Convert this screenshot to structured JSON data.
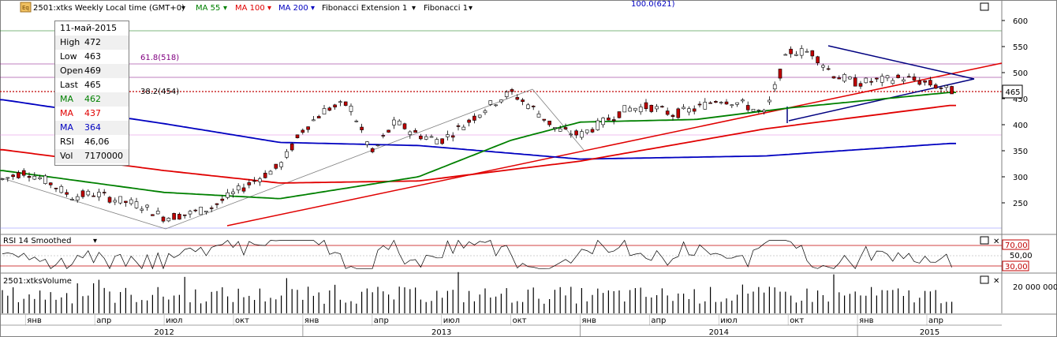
{
  "header": {
    "symbol_label": "2501:xtks Weekly Local time (GMT+0)",
    "ma55_label": "MA 55",
    "ma100_label": "MA 100",
    "ma200_label": "MA 200",
    "fib_ext_label": "Fibonacci Extension 1",
    "fib_label": "Fibonacci 1"
  },
  "info_box": {
    "date": "11-май-2015",
    "rows": [
      {
        "key": "High",
        "value": "472",
        "color": "#000000"
      },
      {
        "key": "Low",
        "value": "463",
        "color": "#000000"
      },
      {
        "key": "Open",
        "value": "469",
        "color": "#000000"
      },
      {
        "key": "Last",
        "value": "465",
        "color": "#000000"
      },
      {
        "key": "MA",
        "value": "462",
        "color": "#008000"
      },
      {
        "key": "MA",
        "value": "437",
        "color": "#e00000"
      },
      {
        "key": "MA",
        "value": "364",
        "color": "#0000c0"
      },
      {
        "key": "RSI",
        "value": "46,06",
        "color": "#000000"
      },
      {
        "key": "Vol",
        "value": "7170000",
        "color": "#000000"
      }
    ]
  },
  "fib_labels": {
    "ext": "100.0(621)",
    "f618": "61.8(518)",
    "f382": "38.2(454)"
  },
  "last_price_label": "465",
  "rsi_panel": {
    "title": "RSI 14 Smoothed",
    "levels": [
      "70,00",
      "50,00",
      "30,00"
    ]
  },
  "volume_panel": {
    "title": "2501:xtksVolume",
    "scale_label": "20 000 000"
  },
  "x_axis": {
    "months": [
      "янв",
      "апр",
      "июл",
      "окт",
      "янв",
      "апр",
      "июл",
      "окт",
      "янв",
      "апр",
      "июл",
      "окт",
      "янв",
      "апр"
    ],
    "years": [
      "2012",
      "2013",
      "2014",
      "2015"
    ]
  },
  "colors": {
    "ma55": "#008000",
    "ma100": "#e00000",
    "ma200": "#0000c0",
    "fib": "#800080",
    "up": "#ffffff",
    "down": "#c00000"
  },
  "chart_data": {
    "type": "candlestick",
    "title": "2501:xtks Weekly",
    "y_ticks": [
      250,
      300,
      350,
      400,
      450,
      500,
      550,
      600
    ],
    "ylim": [
      200,
      630
    ],
    "period": "2011-12 to 2015-05 (weekly)",
    "close_anchor_points": [
      {
        "date": "2011-12",
        "close": 295
      },
      {
        "date": "2012-01",
        "close": 310
      },
      {
        "date": "2012-02",
        "close": 290
      },
      {
        "date": "2012-03",
        "close": 262
      },
      {
        "date": "2012-04",
        "close": 268
      },
      {
        "date": "2012-05",
        "close": 255
      },
      {
        "date": "2012-06",
        "close": 245
      },
      {
        "date": "2012-07",
        "close": 222
      },
      {
        "date": "2012-08",
        "close": 228
      },
      {
        "date": "2012-09",
        "close": 240
      },
      {
        "date": "2012-10",
        "close": 268
      },
      {
        "date": "2012-11",
        "close": 295
      },
      {
        "date": "2012-12",
        "close": 320
      },
      {
        "date": "2013-01",
        "close": 390
      },
      {
        "date": "2013-02",
        "close": 430
      },
      {
        "date": "2013-03",
        "close": 440
      },
      {
        "date": "2013-04",
        "close": 345
      },
      {
        "date": "2013-05",
        "close": 405
      },
      {
        "date": "2013-06",
        "close": 380
      },
      {
        "date": "2013-07",
        "close": 370
      },
      {
        "date": "2013-08",
        "close": 400
      },
      {
        "date": "2013-09",
        "close": 435
      },
      {
        "date": "2013-10",
        "close": 462
      },
      {
        "date": "2013-11",
        "close": 430
      },
      {
        "date": "2013-12",
        "close": 390
      },
      {
        "date": "2014-01",
        "close": 380
      },
      {
        "date": "2014-02",
        "close": 405
      },
      {
        "date": "2014-03",
        "close": 430
      },
      {
        "date": "2014-04",
        "close": 435
      },
      {
        "date": "2014-05",
        "close": 420
      },
      {
        "date": "2014-06",
        "close": 430
      },
      {
        "date": "2014-07",
        "close": 450
      },
      {
        "date": "2014-08",
        "close": 440
      },
      {
        "date": "2014-09",
        "close": 420
      },
      {
        "date": "2014-10",
        "close": 540
      },
      {
        "date": "2014-11",
        "close": 540
      },
      {
        "date": "2014-12",
        "close": 495
      },
      {
        "date": "2015-01",
        "close": 480
      },
      {
        "date": "2015-02",
        "close": 485
      },
      {
        "date": "2015-03",
        "close": 490
      },
      {
        "date": "2015-04",
        "close": 480
      },
      {
        "date": "2015-05",
        "close": 465
      }
    ],
    "ma55_points": [
      {
        "date": "2011-12",
        "value": 312
      },
      {
        "date": "2012-07",
        "value": 270
      },
      {
        "date": "2012-12",
        "value": 258
      },
      {
        "date": "2013-06",
        "value": 300
      },
      {
        "date": "2013-10",
        "value": 370
      },
      {
        "date": "2014-01",
        "value": 405
      },
      {
        "date": "2014-06",
        "value": 410
      },
      {
        "date": "2014-10",
        "value": 432
      },
      {
        "date": "2015-05",
        "value": 462
      }
    ],
    "ma100_points": [
      {
        "date": "2011-12",
        "value": 352
      },
      {
        "date": "2012-07",
        "value": 312
      },
      {
        "date": "2012-12",
        "value": 288
      },
      {
        "date": "2013-06",
        "value": 292
      },
      {
        "date": "2014-01",
        "value": 330
      },
      {
        "date": "2014-09",
        "value": 392
      },
      {
        "date": "2015-05",
        "value": 437
      }
    ],
    "ma200_points": [
      {
        "date": "2011-12",
        "value": 448
      },
      {
        "date": "2012-07",
        "value": 402
      },
      {
        "date": "2012-12",
        "value": 366
      },
      {
        "date": "2013-06",
        "value": 360
      },
      {
        "date": "2014-01",
        "value": 334
      },
      {
        "date": "2014-09",
        "value": 340
      },
      {
        "date": "2015-05",
        "value": 364
      }
    ],
    "fibonacci_levels": [
      {
        "label": "100.0",
        "value": 621
      },
      {
        "label": "61.8",
        "value": 518
      },
      {
        "label": "38.2",
        "value": 454
      }
    ],
    "last": 465,
    "rsi": {
      "levels": [
        70,
        50,
        30
      ],
      "last": 46.06
    },
    "volume_last": 7170000
  }
}
